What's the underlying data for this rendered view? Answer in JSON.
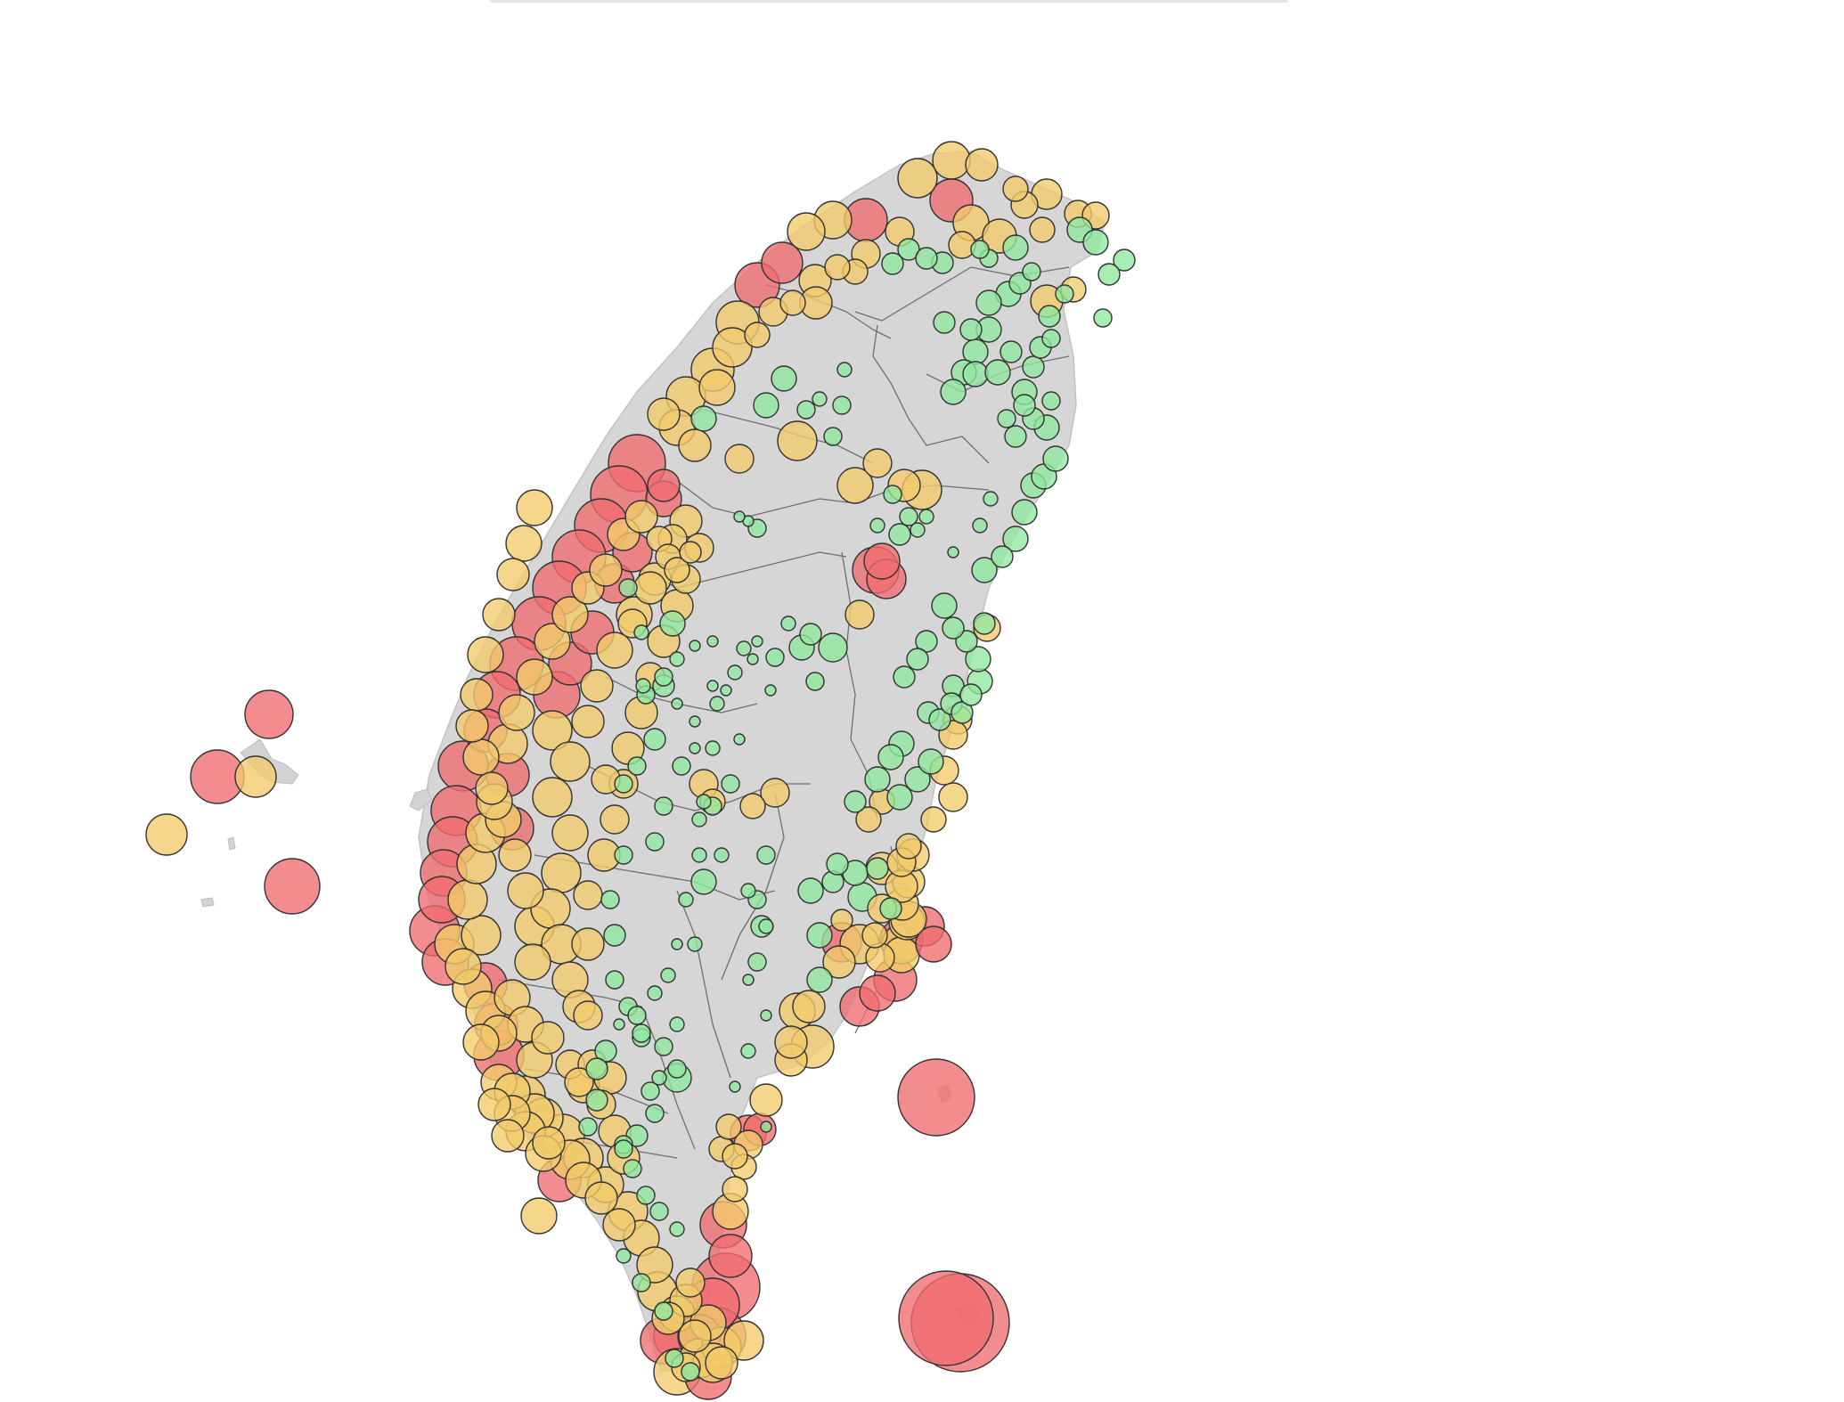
{
  "colors": {
    "background": "#ffffff",
    "land": "#d6d6d6",
    "district_border": "#6f6f6f",
    "marker_outline": "#333333",
    "marker_high": "#f06c6f",
    "marker_medium": "#f2cb6a",
    "marker_low": "#8fe89d"
  },
  "marker_opacity": 0.78,
  "marker_levels": [
    "low",
    "medium",
    "high"
  ],
  "map": {
    "region": "Taiwan",
    "layers": [
      "land",
      "district-borders",
      "bubble-markers"
    ],
    "legend": "none"
  }
}
